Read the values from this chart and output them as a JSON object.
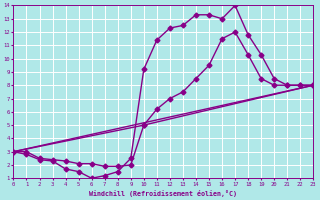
{
  "xlabel": "Windchill (Refroidissement éolien,°C)",
  "bg_color": "#b0e8e8",
  "line_color": "#880088",
  "grid_color": "#ffffff",
  "xmin": 0,
  "xmax": 23,
  "ymin": 1,
  "ymax": 14,
  "series1_x": [
    0,
    1,
    2,
    3,
    4,
    5,
    6,
    7,
    8,
    9,
    10,
    11,
    12,
    13,
    14,
    15,
    16,
    17,
    18,
    19,
    20,
    21,
    22,
    23
  ],
  "series1_y": [
    3.0,
    2.8,
    2.4,
    2.3,
    1.7,
    1.5,
    1.0,
    1.2,
    1.5,
    2.5,
    9.2,
    11.4,
    12.3,
    12.5,
    13.3,
    13.3,
    13.0,
    14.0,
    11.8,
    10.3,
    8.5,
    8.0,
    8.0,
    8.0
  ],
  "series2_x": [
    0,
    1,
    2,
    3,
    4,
    5,
    6,
    7,
    8,
    9,
    10,
    11,
    12,
    13,
    14,
    15,
    16,
    17,
    18,
    19,
    20,
    21,
    22,
    23
  ],
  "series2_y": [
    3.0,
    3.0,
    2.5,
    2.4,
    2.3,
    2.1,
    2.1,
    1.9,
    1.9,
    2.0,
    5.0,
    6.2,
    7.0,
    7.5,
    8.5,
    9.5,
    11.5,
    12.0,
    10.3,
    8.5,
    8.0,
    8.0,
    8.0,
    8.0
  ],
  "series3_x": [
    0,
    23
  ],
  "series3_y": [
    3.0,
    8.0
  ],
  "series4_x": [
    0,
    10,
    23
  ],
  "series4_y": [
    3.0,
    5.0,
    8.0
  ],
  "markersize": 2.5,
  "linewidth": 1.0
}
